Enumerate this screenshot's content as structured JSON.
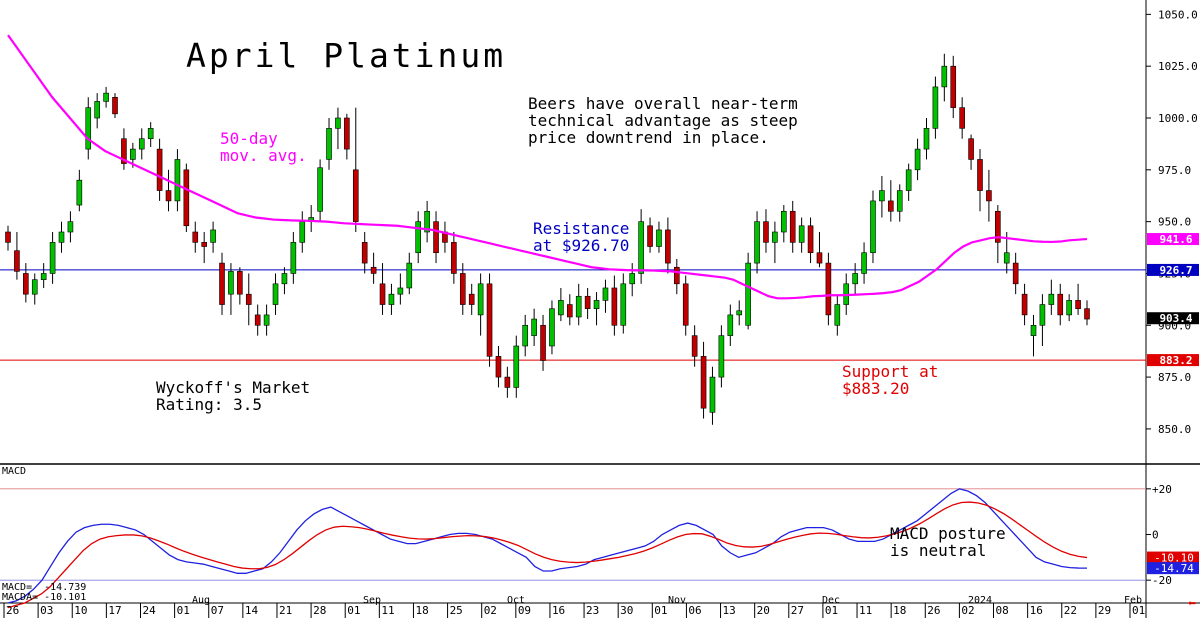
{
  "chart_title": "April Platinum",
  "colors": {
    "up": "#00c000",
    "down": "#c00000",
    "ma": "#ff00ff",
    "resistance": "#0000c0",
    "support": "#e00000",
    "macd": "#2020e0",
    "macda": "#e00000"
  },
  "annotations": {
    "commentary": "Beers have overall near-term\ntechnical advantage as steep\nprice downtrend in place.",
    "ma_label": "50-day\nmov. avg.",
    "resistance_label": "Resistance\nat $926.70",
    "support_label": "Support at\n$883.20",
    "rating": "Wyckoff's Market\nRating: 3.5",
    "macd_note": "MACD posture\nis neutral",
    "macd_title": "MACD",
    "macd_values": "MACD=  -14.739\nMACDA= -10.101"
  },
  "chart_data": [
    {
      "type": "candlestick",
      "title": "April Platinum",
      "ylim": [
        835,
        1055
      ],
      "y_ticks": [
        "1050.0",
        "1025.0",
        "1000.0",
        "975.0",
        "950.0",
        "925.0",
        "900.0",
        "875.0",
        "850.0"
      ],
      "levels": {
        "resistance": 926.7,
        "support": 883.2
      },
      "price_tags": [
        {
          "label": "941.6",
          "value": 941.6,
          "color": "#ff00ff"
        },
        {
          "label": "926.7",
          "value": 926.7,
          "color": "#0000c0"
        },
        {
          "label": "903.4",
          "value": 903.4,
          "color": "#000000"
        },
        {
          "label": "883.2",
          "value": 883.2,
          "color": "#e00000"
        }
      ],
      "ohlc": [
        [
          945,
          948,
          936,
          940
        ],
        [
          936,
          945,
          922,
          926
        ],
        [
          925,
          930,
          911,
          915
        ],
        [
          915,
          925,
          910,
          922
        ],
        [
          922,
          930,
          918,
          925
        ],
        [
          925,
          945,
          920,
          940
        ],
        [
          940,
          950,
          935,
          945
        ],
        [
          945,
          955,
          940,
          950
        ],
        [
          958,
          975,
          955,
          970
        ],
        [
          985,
          1010,
          980,
          1005
        ],
        [
          1000,
          1012,
          995,
          1008
        ],
        [
          1008,
          1015,
          1005,
          1012
        ],
        [
          1010,
          1012,
          1000,
          1002
        ],
        [
          990,
          995,
          975,
          978
        ],
        [
          980,
          988,
          976,
          985
        ],
        [
          985,
          995,
          980,
          990
        ],
        [
          990,
          998,
          986,
          995
        ],
        [
          985,
          990,
          960,
          965
        ],
        [
          965,
          975,
          955,
          960
        ],
        [
          960,
          985,
          955,
          980
        ],
        [
          975,
          978,
          945,
          948
        ],
        [
          945,
          950,
          935,
          940
        ],
        [
          940,
          945,
          930,
          938
        ],
        [
          940,
          950,
          935,
          946
        ],
        [
          930,
          935,
          905,
          910
        ],
        [
          915,
          930,
          905,
          926
        ],
        [
          926,
          928,
          910,
          915
        ],
        [
          915,
          925,
          900,
          910
        ],
        [
          905,
          910,
          895,
          900
        ],
        [
          900,
          910,
          895,
          905
        ],
        [
          910,
          925,
          905,
          920
        ],
        [
          920,
          928,
          915,
          925
        ],
        [
          925,
          945,
          920,
          940
        ],
        [
          940,
          955,
          935,
          950
        ],
        [
          950,
          958,
          945,
          952
        ],
        [
          955,
          980,
          950,
          976
        ],
        [
          980,
          1000,
          975,
          995
        ],
        [
          995,
          1005,
          985,
          1000
        ],
        [
          1000,
          1002,
          980,
          985
        ],
        [
          975,
          1005,
          945,
          950
        ],
        [
          940,
          945,
          925,
          930
        ],
        [
          928,
          935,
          920,
          925
        ],
        [
          920,
          930,
          905,
          910
        ],
        [
          910,
          920,
          905,
          915
        ],
        [
          915,
          925,
          910,
          918
        ],
        [
          918,
          935,
          915,
          930
        ],
        [
          935,
          955,
          930,
          950
        ],
        [
          945,
          960,
          940,
          955
        ],
        [
          950,
          955,
          930,
          935
        ],
        [
          945,
          950,
          935,
          940
        ],
        [
          940,
          945,
          920,
          925
        ],
        [
          925,
          930,
          905,
          910
        ],
        [
          915,
          920,
          905,
          910
        ],
        [
          905,
          925,
          895,
          920
        ],
        [
          920,
          925,
          880,
          885
        ],
        [
          885,
          890,
          870,
          875
        ],
        [
          875,
          880,
          865,
          870
        ],
        [
          870,
          895,
          865,
          890
        ],
        [
          890,
          905,
          885,
          900
        ],
        [
          895,
          908,
          890,
          903
        ],
        [
          900,
          905,
          878,
          883
        ],
        [
          890,
          912,
          886,
          908
        ],
        [
          905,
          918,
          902,
          912
        ],
        [
          910,
          915,
          900,
          904
        ],
        [
          904,
          920,
          900,
          914
        ],
        [
          914,
          918,
          903,
          908
        ],
        [
          908,
          916,
          900,
          912
        ],
        [
          912,
          922,
          906,
          918
        ],
        [
          918,
          924,
          895,
          900
        ],
        [
          900,
          925,
          896,
          920
        ],
        [
          920,
          930,
          914,
          925
        ],
        [
          925,
          956,
          920,
          950
        ],
        [
          948,
          952,
          935,
          938
        ],
        [
          938,
          950,
          935,
          946
        ],
        [
          946,
          952,
          925,
          930
        ],
        [
          928,
          932,
          915,
          920
        ],
        [
          920,
          924,
          895,
          900
        ],
        [
          895,
          900,
          880,
          885
        ],
        [
          885,
          892,
          855,
          860
        ],
        [
          858,
          880,
          852,
          875
        ],
        [
          875,
          900,
          870,
          895
        ],
        [
          895,
          910,
          890,
          905
        ],
        [
          905,
          912,
          900,
          907
        ],
        [
          900,
          935,
          898,
          930
        ],
        [
          930,
          955,
          925,
          950
        ],
        [
          950,
          956,
          935,
          940
        ],
        [
          940,
          950,
          930,
          945
        ],
        [
          945,
          958,
          940,
          955
        ],
        [
          955,
          960,
          935,
          940
        ],
        [
          940,
          952,
          935,
          948
        ],
        [
          948,
          952,
          930,
          935
        ],
        [
          935,
          945,
          928,
          930
        ],
        [
          930,
          935,
          900,
          905
        ],
        [
          900,
          915,
          895,
          910
        ],
        [
          910,
          925,
          905,
          920
        ],
        [
          920,
          930,
          915,
          925
        ],
        [
          925,
          940,
          920,
          935
        ],
        [
          935,
          965,
          930,
          960
        ],
        [
          960,
          972,
          952,
          965
        ],
        [
          960,
          970,
          950,
          955
        ],
        [
          955,
          968,
          950,
          965
        ],
        [
          965,
          978,
          960,
          975
        ],
        [
          975,
          990,
          970,
          985
        ],
        [
          985,
          1000,
          980,
          995
        ],
        [
          995,
          1020,
          990,
          1015
        ],
        [
          1015,
          1031,
          1008,
          1025
        ],
        [
          1025,
          1030,
          1000,
          1005
        ],
        [
          1005,
          1010,
          990,
          995
        ],
        [
          990,
          992,
          975,
          980
        ],
        [
          980,
          985,
          955,
          965
        ],
        [
          965,
          975,
          950,
          960
        ],
        [
          955,
          958,
          930,
          940
        ],
        [
          930,
          945,
          925,
          935
        ],
        [
          930,
          935,
          915,
          920
        ],
        [
          915,
          920,
          900,
          905
        ],
        [
          895,
          905,
          885,
          900
        ],
        [
          900,
          915,
          890,
          910
        ],
        [
          910,
          922,
          905,
          915
        ],
        [
          915,
          920,
          900,
          905
        ],
        [
          905,
          915,
          902,
          912
        ],
        [
          912,
          920,
          905,
          908
        ],
        [
          908,
          912,
          900,
          903
        ]
      ],
      "x_tick_labels": [
        "26",
        "03",
        "10",
        "17",
        "24",
        "01",
        "07",
        "14",
        "21",
        "28",
        "01",
        "11",
        "18",
        "25",
        "02",
        "09",
        "16",
        "23",
        "30",
        "01",
        "06",
        "13",
        "20",
        "27",
        "01",
        "11",
        "18",
        "26",
        "02",
        "08",
        "16",
        "22",
        "29",
        "01"
      ],
      "month_labels": [
        "Aug",
        "Sep",
        "Oct",
        "Nov",
        "Dec",
        "2024",
        "Feb"
      ],
      "series": [
        {
          "name": "50-day mov. avg.",
          "values": [
            1040,
            1034,
            1028,
            1022,
            1016,
            1010,
            1005,
            1000,
            995,
            990,
            987,
            984,
            982,
            980,
            978,
            976,
            974,
            972,
            970,
            968,
            966,
            964,
            962,
            960,
            958,
            956,
            954,
            953,
            952,
            951.5,
            951,
            950.8,
            950.6,
            950.5,
            950.4,
            950.2,
            950,
            949.6,
            949.2,
            949,
            948.8,
            948.6,
            948.4,
            948.2,
            948,
            947.5,
            947,
            946.5,
            946,
            945,
            944,
            943,
            942,
            941,
            940,
            939,
            938,
            937,
            936,
            935,
            934,
            933,
            932,
            931,
            930,
            929,
            928,
            927.5,
            927,
            926.8,
            926.6,
            926.5,
            926.5,
            926.4,
            926.2,
            926,
            925.5,
            925,
            924.5,
            924,
            923.5,
            923,
            922,
            920,
            918,
            916,
            914,
            913,
            913,
            913.2,
            913.5,
            914,
            914.2,
            914.5,
            914.5,
            914.6,
            914.8,
            915,
            915.2,
            915.5,
            916,
            917,
            919,
            921,
            924,
            927,
            931,
            935,
            938,
            940,
            941,
            942,
            942.5,
            942,
            941.5,
            941,
            940.5,
            940.3,
            940.2,
            940.4,
            941,
            941.3,
            941.6
          ]
        }
      ]
    },
    {
      "type": "line",
      "title": "MACD",
      "ylim": [
        -30,
        30
      ],
      "y_ticks": [
        "+20",
        "0",
        "-20"
      ],
      "value_tags": [
        {
          "label": "-10.10",
          "value": -10.1,
          "color": "#e00000"
        },
        {
          "label": "-14.74",
          "value": -14.74,
          "color": "#2020e0"
        }
      ],
      "series": [
        {
          "name": "MACD",
          "values": [
            -30,
            -29,
            -27,
            -24,
            -20,
            -14,
            -8,
            -3,
            1,
            3,
            4,
            4.5,
            4.5,
            4,
            3,
            2,
            0,
            -3,
            -6,
            -9,
            -11,
            -12,
            -12.5,
            -13,
            -14,
            -15,
            -16,
            -17,
            -17,
            -16,
            -15,
            -12,
            -8,
            -3,
            2,
            6,
            9,
            11,
            12,
            10,
            8,
            6,
            4,
            2,
            0,
            -2,
            -3,
            -4,
            -4,
            -3,
            -2,
            -1,
            0,
            0.5,
            0.5,
            0,
            -1,
            -2,
            -4,
            -6,
            -8,
            -10,
            -14,
            -16,
            -16,
            -15,
            -14.5,
            -14,
            -13,
            -11,
            -10,
            -9,
            -8,
            -7,
            -6,
            -5,
            -3,
            0,
            2,
            4,
            5,
            4,
            2,
            0,
            -5,
            -8,
            -10,
            -9,
            -8,
            -6,
            -4,
            -1,
            1,
            2,
            3,
            3,
            3,
            2,
            0,
            -2,
            -3,
            -3,
            -3,
            -2,
            0,
            2,
            4,
            6,
            9,
            12,
            15,
            18,
            20,
            19,
            17,
            14,
            10,
            6,
            2,
            -2,
            -6,
            -10,
            -12,
            -13,
            -14,
            -14.5,
            -14.7,
            -14.74
          ]
        },
        {
          "name": "MACDA",
          "values": [
            -32,
            -31,
            -30,
            -28,
            -26,
            -23,
            -19,
            -15,
            -11,
            -7,
            -4,
            -2,
            -1,
            -0.5,
            -0.2,
            -0.2,
            -0.6,
            -1.5,
            -2.8,
            -4.2,
            -5.8,
            -7.3,
            -8.6,
            -9.8,
            -10.9,
            -12,
            -13,
            -14,
            -14.7,
            -15,
            -15,
            -14.4,
            -13.1,
            -11,
            -8.4,
            -5.5,
            -2.6,
            0,
            2,
            3.2,
            3.6,
            3.4,
            3,
            2.3,
            1.4,
            0.5,
            -0.3,
            -1,
            -1.6,
            -1.9,
            -2,
            -1.8,
            -1.4,
            -1,
            -0.7,
            -0.5,
            -0.6,
            -0.9,
            -1.5,
            -2.4,
            -3.5,
            -4.8,
            -6.6,
            -8.4,
            -9.9,
            -11,
            -11.7,
            -12.1,
            -12.3,
            -12.1,
            -11.7,
            -11.2,
            -10.6,
            -10,
            -9.2,
            -8.4,
            -7.3,
            -5.9,
            -4.3,
            -2.6,
            -1.1,
            0,
            0.4,
            0.3,
            -0.8,
            -2.2,
            -3.8,
            -4.8,
            -5.4,
            -5.5,
            -5.2,
            -4.4,
            -3.3,
            -2.2,
            -1.2,
            -0.4,
            0.3,
            0.6,
            0.5,
            0.1,
            -0.5,
            -1,
            -1.4,
            -1.5,
            -1.2,
            -0.6,
            0.3,
            1.4,
            2.9,
            4.7,
            6.8,
            9.1,
            11.3,
            13,
            14,
            14.2,
            13.8,
            12.8,
            11.2,
            9.2,
            6.8,
            4.2,
            1.6,
            -1,
            -3.5,
            -5.6,
            -7.4,
            -8.7,
            -9.6,
            -10.1
          ]
        }
      ]
    }
  ]
}
